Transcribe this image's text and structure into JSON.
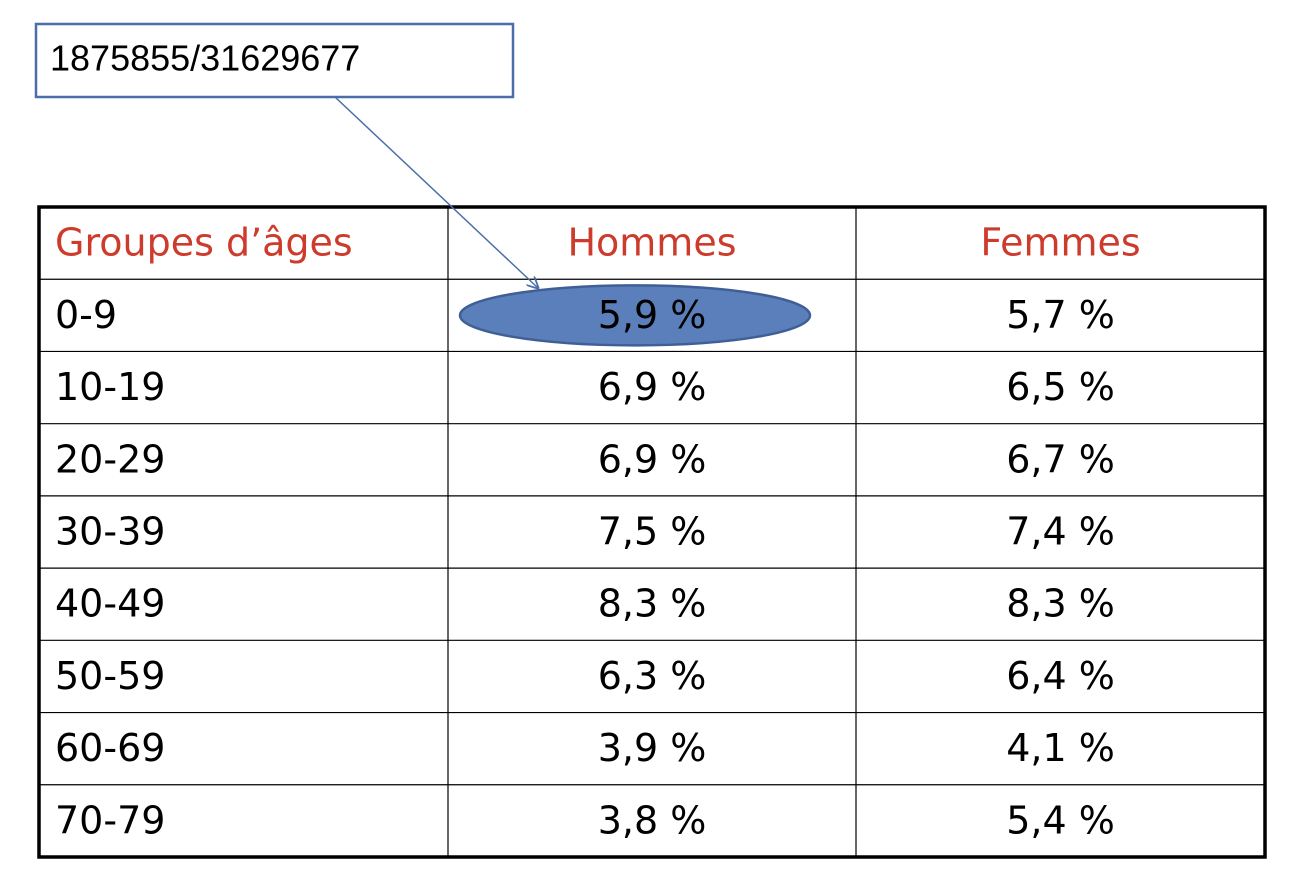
{
  "callout": {
    "text": "1875855/31629677"
  },
  "table": {
    "header": [
      "Groupes d’âges",
      "Hommes",
      "Femmes"
    ],
    "rows": [
      [
        "0-9",
        "5,9 %",
        "5,7 %"
      ],
      [
        "10-19",
        "6,9 %",
        "6,5 %"
      ],
      [
        "20-29",
        "6,9 %",
        "6,7 %"
      ],
      [
        "30-39",
        "7,5 %",
        "7,4 %"
      ],
      [
        "40-49",
        "8,3 %",
        "8,3 %"
      ],
      [
        "50-59",
        "6,3 %",
        "6,4 %"
      ],
      [
        "60-69",
        "3,9 %",
        "4,1 %"
      ],
      [
        "70-79",
        "3,8 %",
        "5,4 %"
      ]
    ]
  }
}
